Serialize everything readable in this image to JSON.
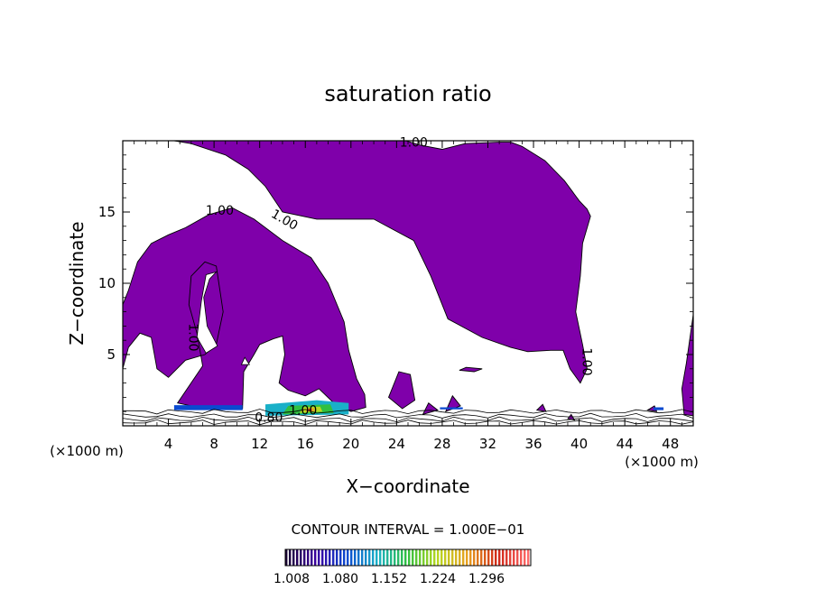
{
  "chart_data": {
    "type": "contour",
    "title": "saturation ratio",
    "xlabel": "X−coordinate",
    "ylabel": "Z−coordinate",
    "x_unit_label": "(×1000 m)",
    "xlim": [
      0,
      50
    ],
    "ylim": [
      0,
      20
    ],
    "x_ticks": [
      4,
      8,
      12,
      16,
      20,
      24,
      28,
      32,
      36,
      40,
      44,
      48
    ],
    "y_ticks": [
      5,
      10,
      15
    ],
    "contour_interval_label": "CONTOUR INTERVAL = 1.000E−01",
    "contour_labels": [
      {
        "text": "1.00",
        "x": 25.5,
        "z": 19.6,
        "rotate": 0
      },
      {
        "text": "1.00",
        "x": 8.5,
        "z": 14.8,
        "rotate": 0
      },
      {
        "text": "1.00",
        "x": 14.0,
        "z": 14.2,
        "rotate": 30
      },
      {
        "text": "1.00",
        "x": 5.8,
        "z": 6.2,
        "rotate": 90
      },
      {
        "text": "1.00",
        "x": 40.3,
        "z": 4.5,
        "rotate": 90
      },
      {
        "text": "1.00",
        "x": 15.8,
        "z": 0.8,
        "rotate": 0
      },
      {
        "text": "0.80",
        "x": 12.8,
        "z": 0.3,
        "rotate": 0
      }
    ],
    "colorbar": {
      "ticks": [
        "1.008",
        "1.080",
        "1.152",
        "1.224",
        "1.296"
      ],
      "colors": [
        "#1a0033",
        "#3a00a0",
        "#0a4ad0",
        "#1ab0c8",
        "#30c040",
        "#b8d820",
        "#e8a020",
        "#d02818",
        "#ff6a6a"
      ]
    },
    "fill_color": "#7f00aa",
    "grid": false
  }
}
